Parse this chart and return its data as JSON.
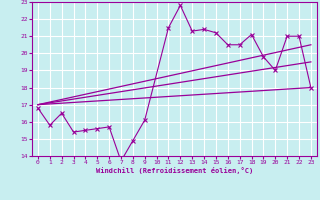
{
  "xlabel": "Windchill (Refroidissement éolien,°C)",
  "background_color": "#c8eef0",
  "grid_color": "#ffffff",
  "line_color": "#990099",
  "xlim": [
    -0.5,
    23.5
  ],
  "ylim": [
    14,
    23
  ],
  "yticks": [
    14,
    15,
    16,
    17,
    18,
    19,
    20,
    21,
    22,
    23
  ],
  "xticks": [
    0,
    1,
    2,
    3,
    4,
    5,
    6,
    7,
    8,
    9,
    10,
    11,
    12,
    13,
    14,
    15,
    16,
    17,
    18,
    19,
    20,
    21,
    22,
    23
  ],
  "series1_x": [
    0,
    1,
    2,
    3,
    4,
    5,
    6,
    7,
    8,
    9,
    11,
    12,
    13,
    14,
    15,
    16,
    17,
    18,
    19,
    20,
    21,
    22,
    23
  ],
  "series1_y": [
    16.8,
    15.8,
    16.5,
    15.4,
    15.5,
    15.6,
    15.7,
    13.7,
    14.9,
    16.1,
    21.5,
    22.8,
    21.3,
    21.4,
    21.2,
    20.5,
    20.5,
    21.1,
    19.8,
    19.0,
    21.0,
    21.0,
    18.0
  ],
  "series2_x": [
    0,
    23
  ],
  "series2_y": [
    17.0,
    18.0
  ],
  "series3_x": [
    0,
    23
  ],
  "series3_y": [
    17.0,
    19.5
  ],
  "series4_x": [
    0,
    23
  ],
  "series4_y": [
    17.0,
    20.5
  ]
}
